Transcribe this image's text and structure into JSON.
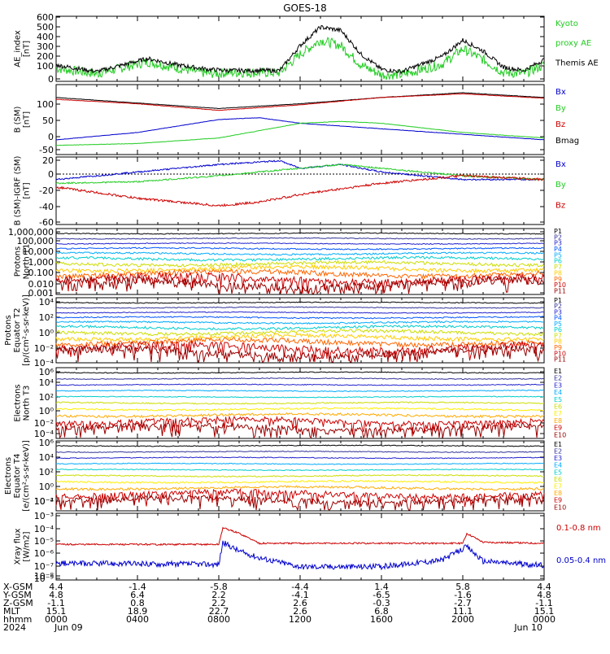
{
  "title": "GOES-18",
  "panels": {
    "ae": {
      "ylabel": [
        "AE_index",
        "[nT]"
      ],
      "ticks": [
        "600",
        "500",
        "400",
        "300",
        "200",
        "100",
        "0"
      ],
      "legend": [
        {
          "text": "Kyoto",
          "color": "#22cc22"
        },
        {
          "text": "proxy AE",
          "color": "#22cc22"
        },
        {
          "text": "Themis AE",
          "color": "#000000"
        }
      ]
    },
    "b": {
      "ylabel": [
        "B (SM)",
        "[nT]"
      ],
      "ticks": [
        "100",
        "50",
        "0",
        "-50"
      ],
      "legend": [
        {
          "text": "Bx",
          "color": "#0000cc"
        },
        {
          "text": "By",
          "color": "#22cc22"
        },
        {
          "text": "Bz",
          "color": "#cc0000"
        },
        {
          "text": "Bmag",
          "color": "#000000"
        }
      ]
    },
    "bi": {
      "ylabel": [
        "B (SM)-IGRF (SM)",
        "[nT]"
      ],
      "ticks": [
        "20",
        "0",
        "-20",
        "-40",
        "-60"
      ],
      "legend": [
        {
          "text": "Bx",
          "color": "#0000cc"
        },
        {
          "text": "By",
          "color": "#22cc22"
        },
        {
          "text": "Bz",
          "color": "#cc0000"
        }
      ]
    },
    "p1": {
      "ylabel": [
        "Protons",
        "North T1"
      ],
      "ticks": [
        "1,000,000",
        "100,000",
        "10,000",
        "1,000",
        "0.100",
        "0.010",
        "0.001"
      ],
      "legend": [
        {
          "text": "P1",
          "color": "#000000"
        },
        {
          "text": "P2",
          "color": "#333399"
        },
        {
          "text": "P3",
          "color": "#2222cc"
        },
        {
          "text": "P4",
          "color": "#0055ff"
        },
        {
          "text": "P5",
          "color": "#00aaff"
        },
        {
          "text": "P6",
          "color": "#00cccc"
        },
        {
          "text": "P7",
          "color": "#ccdd00"
        },
        {
          "text": "P8",
          "color": "#ffcc00"
        },
        {
          "text": "P9",
          "color": "#ff6600"
        },
        {
          "text": "P10",
          "color": "#cc0000"
        },
        {
          "text": "P11",
          "color": "#990000"
        }
      ]
    },
    "p2": {
      "ylabel": [
        "Protons",
        "Equator T2",
        "[p/(cm²-s-sr-keV)]"
      ],
      "ticks": [
        "10⁴",
        "10²",
        "10⁰",
        "10⁻²",
        "10⁻⁴"
      ],
      "legend": [
        {
          "text": "P1",
          "color": "#000000"
        },
        {
          "text": "P2",
          "color": "#333399"
        },
        {
          "text": "P3",
          "color": "#2222cc"
        },
        {
          "text": "P4",
          "color": "#0055ff"
        },
        {
          "text": "P5",
          "color": "#00aaff"
        },
        {
          "text": "P6",
          "color": "#00cccc"
        },
        {
          "text": "P7",
          "color": "#ccdd00"
        },
        {
          "text": "P8",
          "color": "#ffcc00"
        },
        {
          "text": "P9",
          "color": "#ff6600"
        },
        {
          "text": "P10",
          "color": "#cc0000"
        },
        {
          "text": "P11",
          "color": "#990000"
        }
      ]
    },
    "e1": {
      "ylabel": [
        "Electrons",
        "North T3"
      ],
      "ticks": [
        "10⁶",
        "10⁴",
        "10²",
        "10⁰",
        "10⁻²",
        "10⁻⁴"
      ],
      "legend": [
        {
          "text": "E1",
          "color": "#000000"
        },
        {
          "text": "E2",
          "color": "#333399"
        },
        {
          "text": "E3",
          "color": "#2222cc"
        },
        {
          "text": "E4",
          "color": "#00aaff"
        },
        {
          "text": "E5",
          "color": "#00cccc"
        },
        {
          "text": "E6",
          "color": "#ccdd00"
        },
        {
          "text": "E7",
          "color": "#ffee00"
        },
        {
          "text": "E8",
          "color": "#ffaa00"
        },
        {
          "text": "E9",
          "color": "#cc0000"
        },
        {
          "text": "E10",
          "color": "#990000"
        }
      ]
    },
    "e2": {
      "ylabel": [
        "Electrons",
        "Equator T4",
        "[e/(cm²-s-sr-keV)]"
      ],
      "ticks": [
        "10⁶",
        "10⁴",
        "10²",
        "10⁰",
        "10⁻²",
        "10⁻⁴"
      ],
      "legend": [
        {
          "text": "E1",
          "color": "#000000"
        },
        {
          "text": "E2",
          "color": "#333399"
        },
        {
          "text": "E3",
          "color": "#2222cc"
        },
        {
          "text": "E4",
          "color": "#00aaff"
        },
        {
          "text": "E5",
          "color": "#00cccc"
        },
        {
          "text": "E6",
          "color": "#ccdd00"
        },
        {
          "text": "E7",
          "color": "#ffee00"
        },
        {
          "text": "E8",
          "color": "#ffaa00"
        },
        {
          "text": "E9",
          "color": "#cc0000"
        },
        {
          "text": "E10",
          "color": "#990000"
        }
      ]
    },
    "xray": {
      "ylabel": [
        "Xray flux",
        "[W/m2]"
      ],
      "ticks": [
        "10⁻³",
        "10⁻⁴",
        "10⁻⁵",
        "10⁻⁶",
        "10⁻⁷",
        "10⁻⁸",
        "10⁻⁹"
      ],
      "legend": [
        {
          "text": "0.1-0.8 nm",
          "color": "#cc0000"
        },
        {
          "text": "0.05-0.4 nm",
          "color": "#0000cc"
        }
      ]
    }
  },
  "axis_table": {
    "row_labels": [
      "X-GSM",
      "Y-GSM",
      "Z-GSM",
      "MLT",
      "hhmm",
      "2024"
    ],
    "columns": [
      [
        "4.4",
        "4.8",
        "-1.1",
        "15.1",
        "0000",
        "Jun 09"
      ],
      [
        "-1.4",
        "6.4",
        "0.8",
        "18.9",
        "0400",
        ""
      ],
      [
        "-5.8",
        "2.2",
        "2.2",
        "22.7",
        "0800",
        ""
      ],
      [
        "-4.4",
        "-4.1",
        "2.6",
        "2.6",
        "1200",
        ""
      ],
      [
        "1.4",
        "-6.5",
        "-0.3",
        "6.8",
        "1600",
        ""
      ],
      [
        "5.8",
        "-1.6",
        "-2.7",
        "11.1",
        "2000",
        ""
      ],
      [
        "4.4",
        "4.8",
        "-1.1",
        "15.1",
        "0000",
        "Jun 10"
      ]
    ]
  },
  "chart_data": {
    "type": "line",
    "title": "GOES-18",
    "x_hours": [
      0,
      4,
      8,
      12,
      16,
      20,
      24
    ],
    "ae": {
      "ylim": [
        0,
        600
      ],
      "themis_keypoints": [
        [
          0,
          150
        ],
        [
          2,
          90
        ],
        [
          4.5,
          210
        ],
        [
          6,
          150
        ],
        [
          7.5,
          110
        ],
        [
          8.5,
          100
        ],
        [
          11,
          100
        ],
        [
          12,
          330
        ],
        [
          13,
          500
        ],
        [
          14,
          470
        ],
        [
          15,
          250
        ],
        [
          16,
          110
        ],
        [
          17,
          90
        ],
        [
          19,
          230
        ],
        [
          20,
          380
        ],
        [
          21,
          280
        ],
        [
          22,
          130
        ],
        [
          23,
          100
        ],
        [
          24,
          200
        ]
      ],
      "proxy_keypoints": [
        [
          0,
          120
        ],
        [
          2,
          70
        ],
        [
          4.5,
          180
        ],
        [
          6,
          120
        ],
        [
          7.5,
          70
        ],
        [
          8.5,
          80
        ],
        [
          11,
          80
        ],
        [
          12,
          250
        ],
        [
          13,
          380
        ],
        [
          14,
          330
        ],
        [
          15,
          150
        ],
        [
          16,
          60
        ],
        [
          17,
          60
        ],
        [
          19,
          160
        ],
        [
          20,
          300
        ],
        [
          21,
          200
        ],
        [
          22,
          80
        ],
        [
          23,
          70
        ],
        [
          24,
          150
        ]
      ]
    },
    "b": {
      "ylim": [
        -60,
        130
      ],
      "bmag": [
        [
          0,
          95
        ],
        [
          4,
          80
        ],
        [
          8,
          65
        ],
        [
          12,
          78
        ],
        [
          16,
          95
        ],
        [
          20,
          108
        ],
        [
          24,
          95
        ]
      ],
      "bz": [
        [
          0,
          90
        ],
        [
          4,
          78
        ],
        [
          8,
          60
        ],
        [
          12,
          75
        ],
        [
          16,
          95
        ],
        [
          20,
          105
        ],
        [
          24,
          93
        ]
      ],
      "bx": [
        [
          0,
          -20
        ],
        [
          4,
          0
        ],
        [
          8,
          35
        ],
        [
          10,
          40
        ],
        [
          12,
          25
        ],
        [
          16,
          10
        ],
        [
          20,
          -5
        ],
        [
          24,
          -20
        ]
      ],
      "by": [
        [
          0,
          -35
        ],
        [
          4,
          -30
        ],
        [
          8,
          -15
        ],
        [
          12,
          25
        ],
        [
          14,
          30
        ],
        [
          16,
          25
        ],
        [
          20,
          0
        ],
        [
          24,
          -15
        ]
      ]
    },
    "bi": {
      "ylim": [
        -65,
        25
      ],
      "bx": [
        [
          0,
          -5
        ],
        [
          4,
          5
        ],
        [
          8,
          15
        ],
        [
          11,
          20
        ],
        [
          12,
          10
        ],
        [
          14,
          15
        ],
        [
          16,
          5
        ],
        [
          20,
          -5
        ],
        [
          24,
          -5
        ]
      ],
      "by": [
        [
          0,
          -10
        ],
        [
          4,
          -8
        ],
        [
          8,
          0
        ],
        [
          12,
          10
        ],
        [
          14,
          15
        ],
        [
          16,
          10
        ],
        [
          20,
          0
        ],
        [
          24,
          -5
        ]
      ],
      "bz": [
        [
          0,
          -15
        ],
        [
          4,
          -30
        ],
        [
          8,
          -40
        ],
        [
          10,
          -35
        ],
        [
          12,
          -25
        ],
        [
          16,
          -10
        ],
        [
          20,
          0
        ],
        [
          24,
          -5
        ]
      ]
    }
  }
}
